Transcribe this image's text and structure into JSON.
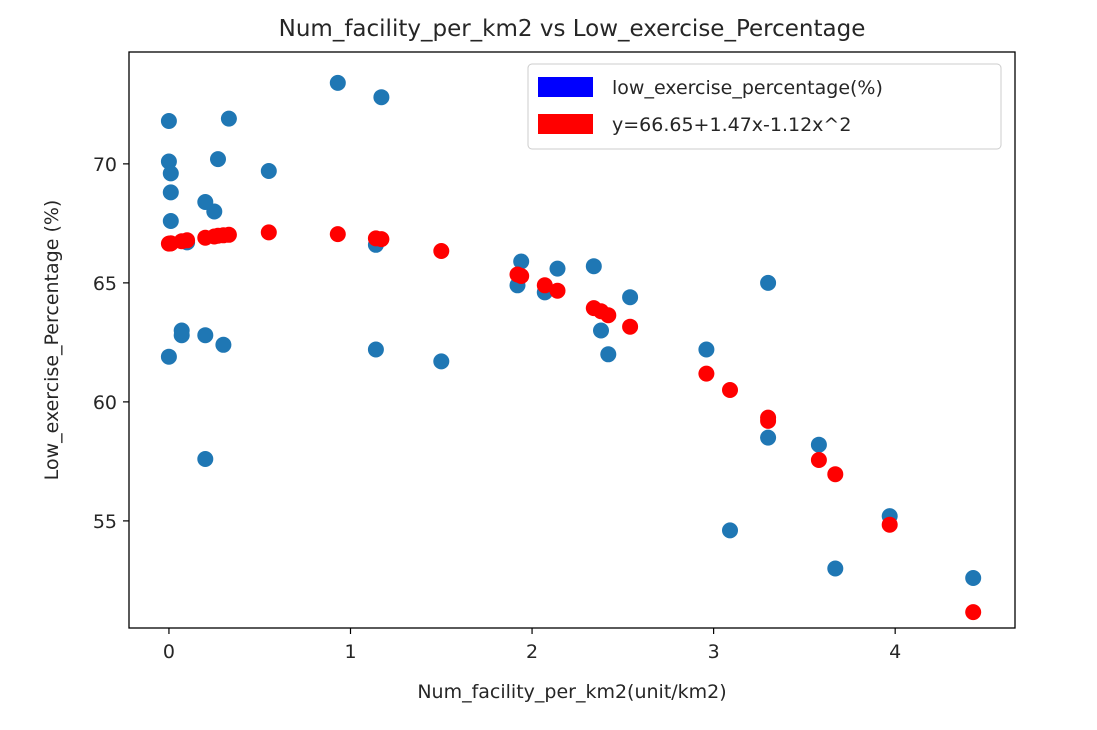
{
  "chart_data": {
    "type": "scatter",
    "title": "Num_facility_per_km2 vs Low_exercise_Percentage",
    "xlabel": "Num_facility_per_km2(unit/km2)",
    "ylabel": "Low_exercise_Percentage (%)",
    "xlim": [
      -0.22,
      4.66
    ],
    "ylim": [
      50.5,
      74.7
    ],
    "xticks": [
      0,
      1,
      2,
      3,
      4
    ],
    "xtick_labels": [
      "0",
      "1",
      "2",
      "3",
      "4"
    ],
    "yticks": [
      55,
      60,
      65,
      70
    ],
    "ytick_labels": [
      "55",
      "60",
      "65",
      "70"
    ],
    "grid": false,
    "legend_position": "top-right",
    "legend": [
      {
        "label": "low_exercise_percentage(%)",
        "color": "#0000ff"
      },
      {
        "label": "y=66.65+1.47x-1.12x^2",
        "color": "#ff0000"
      }
    ],
    "series": [
      {
        "name": "low_exercise_percentage(%)",
        "color": "#1f77b4",
        "points": [
          [
            0.0,
            71.8
          ],
          [
            0.0,
            70.1
          ],
          [
            0.01,
            69.6
          ],
          [
            0.01,
            68.8
          ],
          [
            0.01,
            67.6
          ],
          [
            0.0,
            61.9
          ],
          [
            0.07,
            62.8
          ],
          [
            0.07,
            63.0
          ],
          [
            0.1,
            66.7
          ],
          [
            0.2,
            68.4
          ],
          [
            0.25,
            68.0
          ],
          [
            0.27,
            70.2
          ],
          [
            0.33,
            71.9
          ],
          [
            0.2,
            62.8
          ],
          [
            0.3,
            62.4
          ],
          [
            0.2,
            57.6
          ],
          [
            0.55,
            69.7
          ],
          [
            0.93,
            73.4
          ],
          [
            1.17,
            72.8
          ],
          [
            1.14,
            66.6
          ],
          [
            1.14,
            62.2
          ],
          [
            1.5,
            61.7
          ],
          [
            1.92,
            64.9
          ],
          [
            1.94,
            65.9
          ],
          [
            2.07,
            64.6
          ],
          [
            2.14,
            65.6
          ],
          [
            2.34,
            65.7
          ],
          [
            2.38,
            63.0
          ],
          [
            2.42,
            62.0
          ],
          [
            2.54,
            64.4
          ],
          [
            2.96,
            62.2
          ],
          [
            3.09,
            54.6
          ],
          [
            3.3,
            65.0
          ],
          [
            3.3,
            58.5
          ],
          [
            3.58,
            58.2
          ],
          [
            3.67,
            53.0
          ],
          [
            3.97,
            55.2
          ],
          [
            4.43,
            52.6
          ]
        ]
      },
      {
        "name": "y=66.65+1.47x-1.12x^2",
        "color": "#ff0000",
        "points": [
          [
            0.0,
            66.65
          ],
          [
            0.01,
            66.66
          ],
          [
            0.01,
            66.66
          ],
          [
            0.07,
            66.75
          ],
          [
            0.1,
            66.79
          ],
          [
            0.2,
            66.9
          ],
          [
            0.25,
            66.95
          ],
          [
            0.27,
            66.98
          ],
          [
            0.3,
            67.0
          ],
          [
            0.33,
            67.02
          ],
          [
            0.55,
            67.12
          ],
          [
            0.93,
            67.05
          ],
          [
            1.14,
            66.87
          ],
          [
            1.17,
            66.84
          ],
          [
            1.5,
            66.34
          ],
          [
            1.92,
            65.35
          ],
          [
            1.94,
            65.29
          ],
          [
            2.07,
            64.9
          ],
          [
            2.14,
            64.67
          ],
          [
            2.34,
            63.94
          ],
          [
            2.38,
            63.81
          ],
          [
            2.42,
            63.64
          ],
          [
            2.54,
            63.16
          ],
          [
            2.96,
            61.19
          ],
          [
            3.09,
            60.5
          ],
          [
            3.3,
            59.34
          ],
          [
            3.3,
            59.2
          ],
          [
            3.58,
            57.56
          ],
          [
            3.67,
            56.96
          ],
          [
            3.97,
            54.84
          ],
          [
            4.43,
            51.17
          ]
        ]
      }
    ]
  }
}
